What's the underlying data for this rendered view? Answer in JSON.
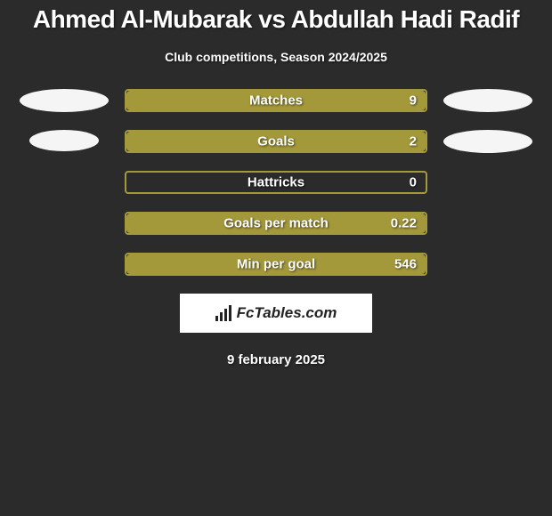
{
  "title": "Ahmed Al-Mubarak vs Abdullah Hadi Radif",
  "subtitle": "Club competitions, Season 2024/2025",
  "date": "9 february 2025",
  "logo_text": "FcTables.com",
  "background_color": "#2b2b2b",
  "avatar_placeholder_color": "#f5f5f5",
  "bar_border_color": "#a3983a",
  "stats": [
    {
      "label": "Matches",
      "value": "9",
      "show_avatars": true,
      "left_fill_pct": 0,
      "right_fill_pct": 100,
      "left_color": "#4a7fb0",
      "right_color": "#a3983a",
      "avatar_left_w": 100,
      "avatar_left_h": 26,
      "avatar_right_w": 100,
      "avatar_right_h": 26
    },
    {
      "label": "Goals",
      "value": "2",
      "show_avatars": true,
      "left_fill_pct": 0,
      "right_fill_pct": 100,
      "left_color": "#4a7fb0",
      "right_color": "#a3983a",
      "avatar_left_w": 78,
      "avatar_left_h": 24,
      "avatar_right_w": 100,
      "avatar_right_h": 26
    },
    {
      "label": "Hattricks",
      "value": "0",
      "show_avatars": false,
      "left_fill_pct": 0,
      "right_fill_pct": 0,
      "left_color": "#4a7fb0",
      "right_color": "#a3983a"
    },
    {
      "label": "Goals per match",
      "value": "0.22",
      "show_avatars": false,
      "left_fill_pct": 0,
      "right_fill_pct": 100,
      "left_color": "#4a7fb0",
      "right_color": "#a3983a"
    },
    {
      "label": "Min per goal",
      "value": "546",
      "show_avatars": false,
      "left_fill_pct": 0,
      "right_fill_pct": 100,
      "left_color": "#4a7fb0",
      "right_color": "#a3983a"
    }
  ]
}
